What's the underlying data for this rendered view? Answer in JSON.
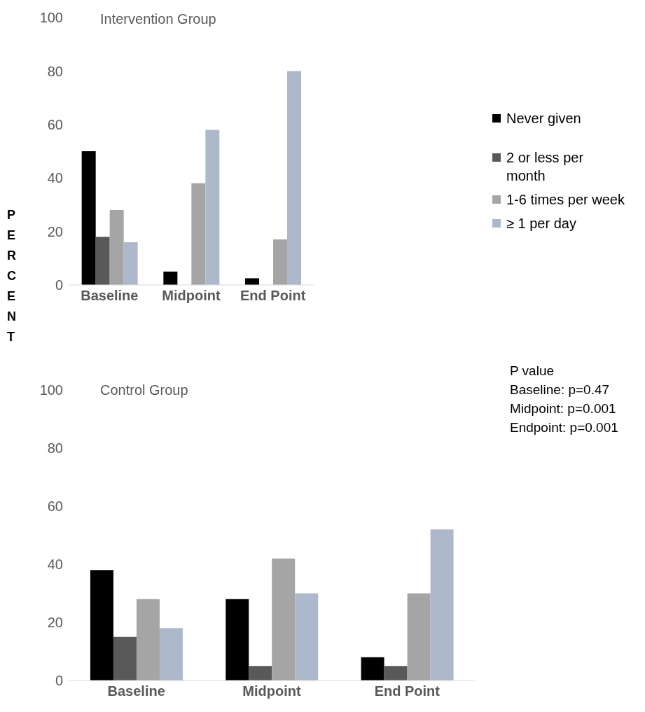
{
  "chart_data": [
    {
      "type": "bar",
      "title": "Intervention Group",
      "ylabel": "PERCENT",
      "categories": [
        "Baseline",
        "Midpoint",
        "End Point"
      ],
      "ylim": [
        0,
        100
      ],
      "yticks": [
        0,
        20,
        40,
        60,
        80,
        100
      ],
      "legend": "right",
      "series": [
        {
          "name": "Never given",
          "color": "#000000",
          "values": [
            50,
            5,
            2.5
          ]
        },
        {
          "name": "2 or less per month",
          "color": "#595959",
          "values": [
            18,
            0,
            0
          ]
        },
        {
          "name": "1-6 times per week",
          "color": "#a5a5a5",
          "values": [
            28,
            38,
            17
          ]
        },
        {
          "name": "≥ 1 per day",
          "color": "#adb9ca",
          "values": [
            16,
            58,
            80
          ]
        }
      ]
    },
    {
      "type": "bar",
      "title": "Control Group",
      "categories": [
        "Baseline",
        "Midpoint",
        "End Point"
      ],
      "ylim": [
        0,
        100
      ],
      "yticks": [
        0,
        20,
        40,
        60,
        80,
        100
      ],
      "annotations": [
        "P value",
        "Baseline: p=0.47",
        "Midpoint: p=0.001",
        "Endpoint: p=0.001"
      ],
      "series": [
        {
          "color": "#000000",
          "values": [
            38,
            28,
            8
          ]
        },
        {
          "color": "#595959",
          "values": [
            15,
            5,
            5
          ]
        },
        {
          "color": "#a5a5a5",
          "values": [
            28,
            42,
            30
          ]
        },
        {
          "color": "#adb9ca",
          "values": [
            18,
            30,
            52
          ]
        }
      ]
    }
  ]
}
